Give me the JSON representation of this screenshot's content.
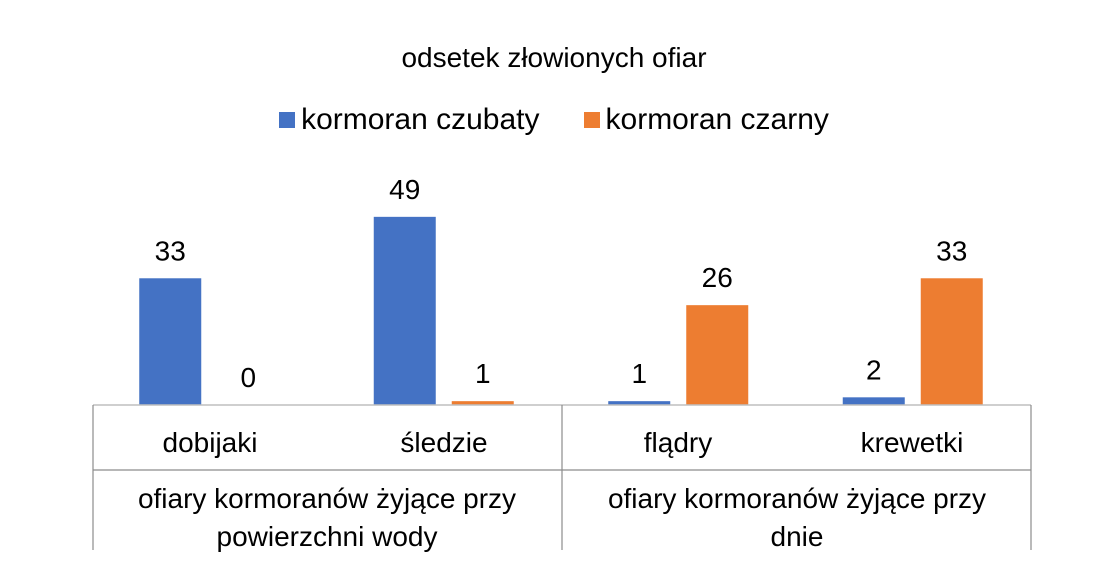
{
  "chart_data": {
    "type": "bar",
    "title": "odsetek złowionych ofiar",
    "categories": [
      "dobijaki",
      "śledzie",
      "flądry",
      "krewetki"
    ],
    "groups": [
      {
        "label": "ofiary kormoranów żyjące przy powierzchni wody",
        "categories": [
          "dobijaki",
          "śledzie"
        ]
      },
      {
        "label": "ofiary kormoranów żyjące przy dnie",
        "categories": [
          "flądry",
          "krewetki"
        ]
      }
    ],
    "series": [
      {
        "name": "kormoran czubaty",
        "color": "#4472C4",
        "values": [
          33,
          49,
          1,
          2
        ]
      },
      {
        "name": "kormoran czarny",
        "color": "#ED7D31",
        "values": [
          0,
          1,
          26,
          33
        ]
      }
    ],
    "data_labels": true,
    "legend_position": "top",
    "grid": false
  }
}
